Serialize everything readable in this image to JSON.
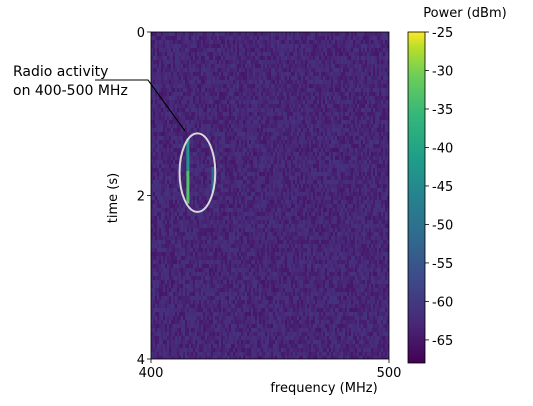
{
  "chart_data": {
    "type": "heatmap",
    "title": "",
    "xlabel": "frequency (MHz)",
    "ylabel": "time (s)",
    "xlim": [
      400,
      500
    ],
    "ylim": [
      4,
      0
    ],
    "x_ticks": [
      400,
      500
    ],
    "y_ticks": [
      0,
      2,
      4
    ],
    "colorbar": {
      "label": "Power (dBm)",
      "range": [
        -68,
        -25
      ],
      "ticks": [
        -25,
        -30,
        -35,
        -40,
        -45,
        -50,
        -55,
        -60,
        -65
      ],
      "colormap": "viridis"
    },
    "background_level_dbm": -63,
    "signals": [
      {
        "freq_mhz": 415.5,
        "t_start": 1.3,
        "t_end": 1.7,
        "power_dbm": -43
      },
      {
        "freq_mhz": 415.5,
        "t_start": 1.7,
        "t_end": 2.1,
        "power_dbm": -33
      },
      {
        "freq_mhz": 426,
        "t_start": 1.65,
        "t_end": 1.95,
        "power_dbm": -52
      }
    ],
    "annotation": {
      "text_line1": "Radio activity",
      "text_line2": "on 400-500 MHz",
      "ellipse": {
        "freq_center": 419.5,
        "time_center": 1.72,
        "freq_halfwidth": 7.5,
        "time_halfwidth": 0.48
      }
    },
    "grid": false,
    "legend": "none"
  }
}
